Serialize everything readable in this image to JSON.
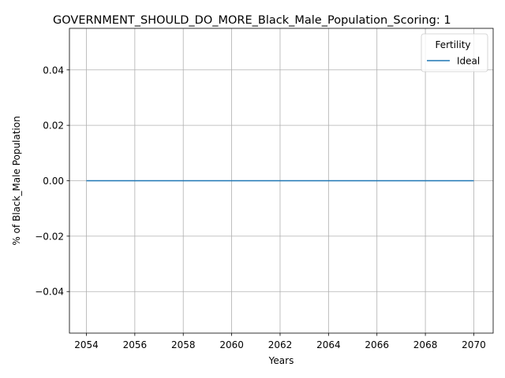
{
  "chart_data": {
    "type": "line",
    "title": "GOVERNMENT_SHOULD_DO_MORE_Black_Male_Population_Scoring: 1",
    "xlabel": "Years",
    "ylabel": "% of Black_Male Population",
    "xlim": [
      2053.3,
      2070.8
    ],
    "ylim": [
      -0.055,
      0.055
    ],
    "x_ticks": [
      2054,
      2056,
      2058,
      2060,
      2062,
      2064,
      2066,
      2068,
      2070
    ],
    "x_tick_labels": [
      "2054",
      "2056",
      "2058",
      "2060",
      "2062",
      "2064",
      "2066",
      "2068",
      "2070"
    ],
    "y_ticks": [
      -0.04,
      -0.02,
      0.0,
      0.02,
      0.04
    ],
    "y_tick_labels": [
      "−0.04",
      "−0.02",
      "0.00",
      "0.02",
      "0.04"
    ],
    "grid": true,
    "legend": {
      "title": "Fertility",
      "placement": "top-right"
    },
    "series": [
      {
        "name": "Ideal",
        "color": "#1f77b4",
        "x": [
          2054,
          2055,
          2056,
          2057,
          2058,
          2059,
          2060,
          2061,
          2062,
          2063,
          2064,
          2065,
          2066,
          2067,
          2068,
          2069,
          2070
        ],
        "y": [
          0,
          0,
          0,
          0,
          0,
          0,
          0,
          0,
          0,
          0,
          0,
          0,
          0,
          0,
          0,
          0,
          0
        ]
      }
    ]
  }
}
